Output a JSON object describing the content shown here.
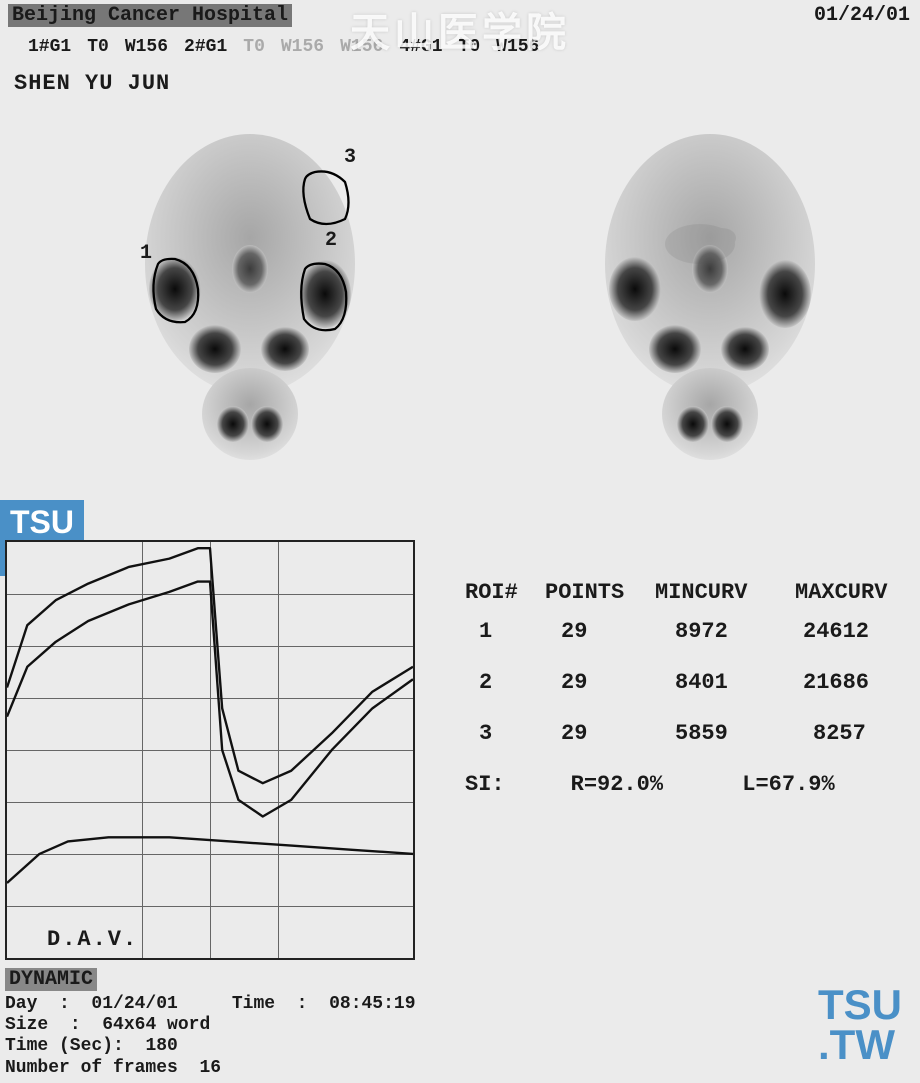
{
  "header": {
    "hospital": "Beijing Cancer Hospital",
    "date": "01/24/01",
    "watermark": "天山医学院"
  },
  "params": [
    {
      "g": "1#G1",
      "t": "T0",
      "w": "W156",
      "faded": false
    },
    {
      "g": "2#G1",
      "t": "T0",
      "w": "W156",
      "faded": false
    },
    {
      "g": "",
      "t": "",
      "w": "W156",
      "faded": true
    },
    {
      "g": "4#G1",
      "t": "T0",
      "w": "W156",
      "faded": false
    }
  ],
  "patient": "SHEN YU JUN",
  "scan": {
    "roi_labels": {
      "r1": "1",
      "r2": "2",
      "r3": "3"
    },
    "description": "Dynamic salivary gland scintigraphy, anterior head/neck views with ROI outlines on left image"
  },
  "chart": {
    "type": "line",
    "label": "D.A.V.",
    "grid": {
      "h_lines": [
        0.125,
        0.25,
        0.375,
        0.5,
        0.625,
        0.75,
        0.875
      ],
      "v_lines": [
        0.333,
        0.5,
        0.667
      ]
    },
    "xlim": [
      0,
      29
    ],
    "ylim": [
      0,
      25000
    ],
    "background_color": "#ebebeb",
    "grid_color": "#666666",
    "axis_color": "#222222",
    "line_color": "#111111",
    "line_width": 2.2,
    "series": [
      {
        "name": "ROI1",
        "points": [
          [
            0,
            0.35
          ],
          [
            0.05,
            0.2
          ],
          [
            0.12,
            0.14
          ],
          [
            0.2,
            0.1
          ],
          [
            0.3,
            0.06
          ],
          [
            0.4,
            0.04
          ],
          [
            0.47,
            0.015
          ],
          [
            0.5,
            0.015
          ],
          [
            0.53,
            0.4
          ],
          [
            0.57,
            0.55
          ],
          [
            0.63,
            0.58
          ],
          [
            0.7,
            0.55
          ],
          [
            0.8,
            0.46
          ],
          [
            0.9,
            0.36
          ],
          [
            1.0,
            0.3
          ]
        ]
      },
      {
        "name": "ROI2",
        "points": [
          [
            0,
            0.42
          ],
          [
            0.05,
            0.3
          ],
          [
            0.12,
            0.24
          ],
          [
            0.2,
            0.19
          ],
          [
            0.3,
            0.15
          ],
          [
            0.4,
            0.12
          ],
          [
            0.47,
            0.095
          ],
          [
            0.5,
            0.095
          ],
          [
            0.53,
            0.5
          ],
          [
            0.57,
            0.62
          ],
          [
            0.63,
            0.66
          ],
          [
            0.7,
            0.62
          ],
          [
            0.8,
            0.5
          ],
          [
            0.9,
            0.4
          ],
          [
            1.0,
            0.33
          ]
        ]
      },
      {
        "name": "ROI3",
        "points": [
          [
            0,
            0.82
          ],
          [
            0.08,
            0.75
          ],
          [
            0.15,
            0.72
          ],
          [
            0.25,
            0.71
          ],
          [
            0.4,
            0.71
          ],
          [
            0.55,
            0.72
          ],
          [
            0.7,
            0.73
          ],
          [
            0.85,
            0.74
          ],
          [
            1.0,
            0.75
          ]
        ]
      }
    ]
  },
  "table": {
    "headers": [
      "ROI#",
      "POINTS",
      "MINCURV",
      "MAXCURV"
    ],
    "rows": [
      [
        "1",
        "29",
        "8972",
        "24612"
      ],
      [
        "2",
        "29",
        "8401",
        "21686"
      ],
      [
        "3",
        "29",
        "5859",
        "8257"
      ]
    ],
    "si": {
      "label": "SI:",
      "r": "R=92.0%",
      "l": "L=67.9%"
    }
  },
  "dynamic_label": "DYNAMIC",
  "meta": {
    "day_label": "Day",
    "day": "01/24/01",
    "time_label": "Time",
    "time": "08:45:19",
    "size_label": "Size",
    "size": "64x64 word",
    "timesec_label": "Time  (Sec)",
    "timesec": "180",
    "frames_label": "Number of frames",
    "frames": "16"
  },
  "tsu": {
    "line1": "TSU",
    "line2": ".TW"
  },
  "colors": {
    "bg": "#ebebeb",
    "ink": "#1a1a1a",
    "badge": "#4a90c7",
    "highlight": "#777777"
  }
}
